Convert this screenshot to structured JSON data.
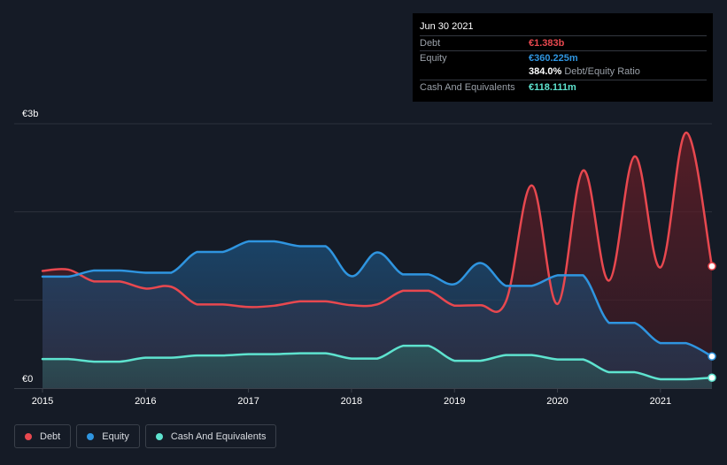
{
  "tooltip": {
    "date": "Jun 30 2021",
    "debt_label": "Debt",
    "debt_value": "€1.383b",
    "equity_label": "Equity",
    "equity_value": "€360.225m",
    "ratio_value": "384.0%",
    "ratio_label": "Debt/Equity Ratio",
    "cash_label": "Cash And Equivalents",
    "cash_value": "€118.111m"
  },
  "legend": {
    "debt": "Debt",
    "equity": "Equity",
    "cash": "Cash And Equivalents"
  },
  "colors": {
    "background": "#151b26",
    "debt": "#e8484f",
    "equity": "#2f95e0",
    "cash": "#5ee3cf",
    "grid": "#2c323c"
  },
  "chart_data": {
    "type": "area",
    "ylim": [
      0,
      3000
    ],
    "xlim": [
      2015.0,
      2021.5
    ],
    "y_ticks": [
      {
        "value": 0,
        "label": "€0"
      },
      {
        "value": 3000,
        "label": "€3b"
      }
    ],
    "grid_lines": [
      1000,
      2000,
      3000
    ],
    "x_ticks": [
      {
        "value": 2015,
        "label": "2015"
      },
      {
        "value": 2016,
        "label": "2016"
      },
      {
        "value": 2017,
        "label": "2017"
      },
      {
        "value": 2018,
        "label": "2018"
      },
      {
        "value": 2019,
        "label": "2019"
      },
      {
        "value": 2020,
        "label": "2020"
      },
      {
        "value": 2021,
        "label": "2021"
      }
    ],
    "series": [
      {
        "name": "Debt",
        "key": "debt",
        "points": [
          [
            2015.0,
            1330
          ],
          [
            2015.25,
            1345
          ],
          [
            2015.5,
            1210
          ],
          [
            2015.75,
            1210
          ],
          [
            2016.0,
            1130
          ],
          [
            2016.25,
            1150
          ],
          [
            2016.5,
            950
          ],
          [
            2016.75,
            950
          ],
          [
            2017.0,
            920
          ],
          [
            2017.25,
            935
          ],
          [
            2017.5,
            985
          ],
          [
            2017.75,
            985
          ],
          [
            2018.0,
            940
          ],
          [
            2018.25,
            950
          ],
          [
            2018.5,
            1105
          ],
          [
            2018.75,
            1105
          ],
          [
            2019.0,
            935
          ],
          [
            2019.25,
            940
          ],
          [
            2019.5,
            985
          ],
          [
            2019.75,
            2300
          ],
          [
            2020.0,
            955
          ],
          [
            2020.25,
            2470
          ],
          [
            2020.5,
            1220
          ],
          [
            2020.75,
            2630
          ],
          [
            2021.0,
            1370
          ],
          [
            2021.25,
            2900
          ],
          [
            2021.5,
            1383
          ]
        ]
      },
      {
        "name": "Equity",
        "key": "equity",
        "points": [
          [
            2015.0,
            1265
          ],
          [
            2015.25,
            1265
          ],
          [
            2015.5,
            1335
          ],
          [
            2015.75,
            1335
          ],
          [
            2016.0,
            1310
          ],
          [
            2016.25,
            1310
          ],
          [
            2016.5,
            1545
          ],
          [
            2016.75,
            1545
          ],
          [
            2017.0,
            1665
          ],
          [
            2017.25,
            1665
          ],
          [
            2017.5,
            1610
          ],
          [
            2017.75,
            1610
          ],
          [
            2018.0,
            1270
          ],
          [
            2018.25,
            1540
          ],
          [
            2018.5,
            1290
          ],
          [
            2018.75,
            1290
          ],
          [
            2019.0,
            1180
          ],
          [
            2019.25,
            1420
          ],
          [
            2019.5,
            1160
          ],
          [
            2019.75,
            1160
          ],
          [
            2020.0,
            1280
          ],
          [
            2020.25,
            1280
          ],
          [
            2020.5,
            740
          ],
          [
            2020.75,
            740
          ],
          [
            2021.0,
            510
          ],
          [
            2021.25,
            510
          ],
          [
            2021.5,
            360
          ]
        ]
      },
      {
        "name": "Cash And Equivalents",
        "key": "cash",
        "points": [
          [
            2015.0,
            330
          ],
          [
            2015.25,
            330
          ],
          [
            2015.5,
            300
          ],
          [
            2015.75,
            300
          ],
          [
            2016.0,
            345
          ],
          [
            2016.25,
            345
          ],
          [
            2016.5,
            370
          ],
          [
            2016.75,
            370
          ],
          [
            2017.0,
            385
          ],
          [
            2017.25,
            385
          ],
          [
            2017.5,
            395
          ],
          [
            2017.75,
            395
          ],
          [
            2018.0,
            335
          ],
          [
            2018.25,
            335
          ],
          [
            2018.5,
            480
          ],
          [
            2018.75,
            480
          ],
          [
            2019.0,
            310
          ],
          [
            2019.25,
            310
          ],
          [
            2019.5,
            375
          ],
          [
            2019.75,
            375
          ],
          [
            2020.0,
            325
          ],
          [
            2020.25,
            325
          ],
          [
            2020.5,
            180
          ],
          [
            2020.75,
            180
          ],
          [
            2021.0,
            100
          ],
          [
            2021.25,
            100
          ],
          [
            2021.5,
            118
          ]
        ]
      }
    ]
  }
}
